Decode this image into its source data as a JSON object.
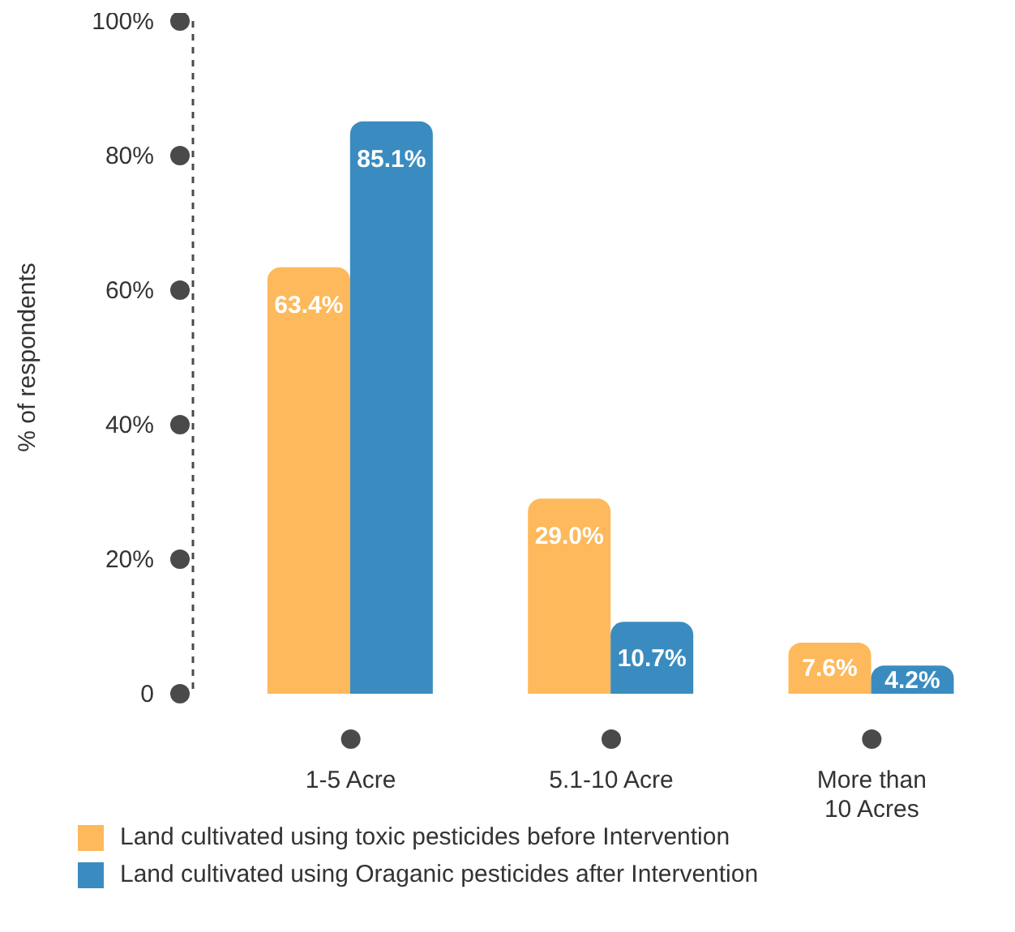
{
  "chart_data": {
    "type": "bar",
    "ylabel": "% of respondents",
    "categories": [
      "1-5 Acre",
      "5.1-10 Acre",
      "More than 10 Acres"
    ],
    "series": [
      {
        "name": "Land cultivated using toxic pesticides before Intervention",
        "color": "#fdb95b",
        "values": [
          63.4,
          29.0,
          7.6
        ],
        "value_labels": [
          "63.4%",
          "29.0%",
          "7.6%"
        ]
      },
      {
        "name": "Land cultivated using Oraganic pesticides after Intervention",
        "color": "#3a8cc0",
        "values": [
          85.1,
          10.7,
          4.2
        ],
        "value_labels": [
          "85.1%",
          "10.7%",
          "4.2%"
        ]
      }
    ],
    "ylim": [
      0,
      100
    ],
    "yticks": [
      0,
      {
        "value": 20,
        "label": "20%"
      },
      {
        "value": 40,
        "label": "40%"
      },
      {
        "value": 60,
        "label": "60%"
      },
      {
        "value": 80,
        "label": "80%"
      },
      {
        "value": 100,
        "label": "100%"
      }
    ],
    "grid": false,
    "legend": "bottom"
  }
}
